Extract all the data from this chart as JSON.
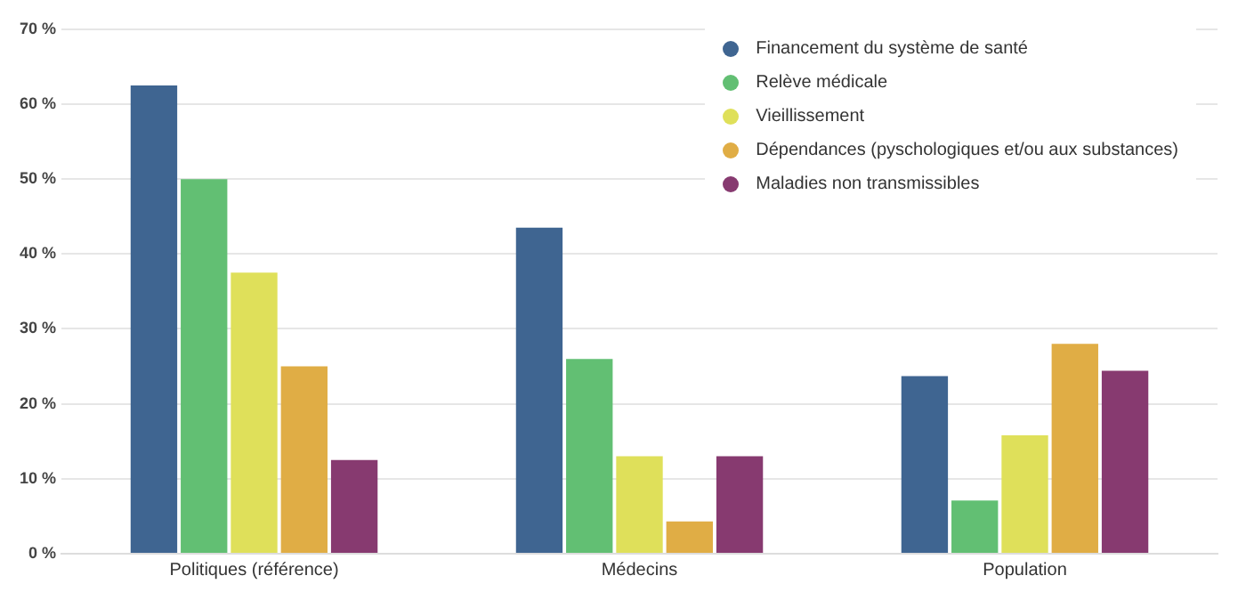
{
  "chart_data": {
    "type": "bar",
    "categories": [
      "Politiques (référence)",
      "Médecins",
      "Population"
    ],
    "series": [
      {
        "name": "Financement du système de santé",
        "color": "#3f6591",
        "values": [
          62.5,
          43.5,
          23.7
        ]
      },
      {
        "name": "Relève médicale",
        "color": "#62bf73",
        "values": [
          50,
          26,
          7.1
        ]
      },
      {
        "name": "Vieillissement",
        "color": "#dfe05a",
        "values": [
          37.5,
          13,
          15.8
        ]
      },
      {
        "name": "Dépendances (pyschologiques et/ou aux substances)",
        "color": "#e0ad45",
        "values": [
          25,
          4.3,
          28
        ]
      },
      {
        "name": "Maladies non transmissibles",
        "color": "#873a70",
        "values": [
          12.5,
          13,
          24.4
        ]
      }
    ],
    "ylim": [
      0,
      70
    ],
    "yticks": [
      {
        "value": 0,
        "label": "0 %"
      },
      {
        "value": 10,
        "label": "10 %"
      },
      {
        "value": 20,
        "label": "20 %"
      },
      {
        "value": 30,
        "label": "30 %"
      },
      {
        "value": 40,
        "label": "40 %"
      },
      {
        "value": 50,
        "label": "50 %"
      },
      {
        "value": 60,
        "label": "60 %"
      },
      {
        "value": 70,
        "label": "70 %"
      }
    ],
    "grid": "y",
    "legend": "top right",
    "marker": "circle"
  }
}
